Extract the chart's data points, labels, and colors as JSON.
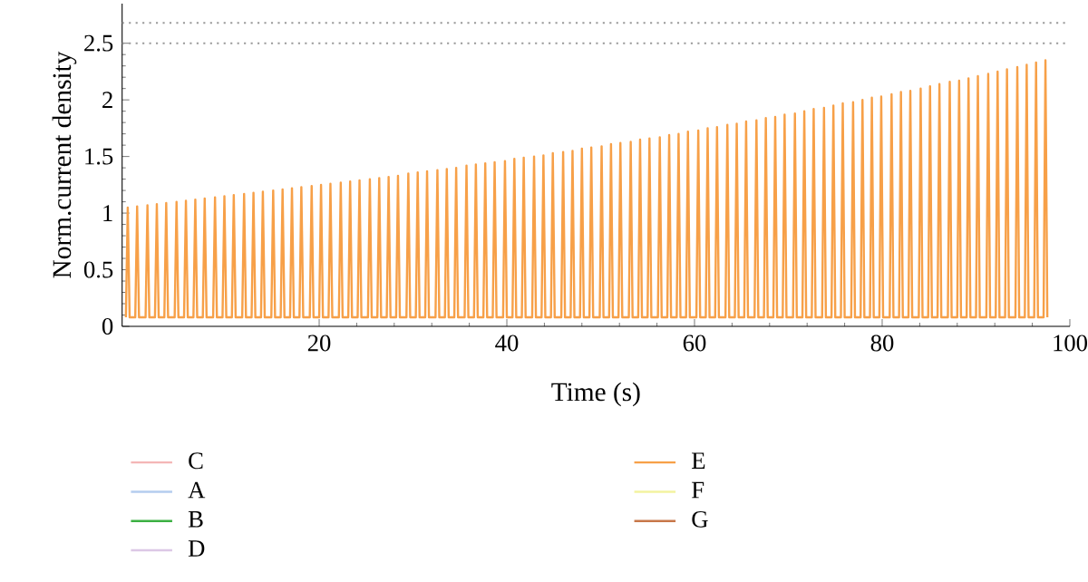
{
  "chart_data": {
    "type": "line",
    "xlabel": "Time (s)",
    "ylabel": "Norm.current density",
    "xlim": [
      -1,
      100
    ],
    "xticks": [
      20,
      40,
      60,
      80,
      100
    ],
    "ylim": [
      0,
      2.85
    ],
    "yticks": [
      0,
      0.5,
      1,
      1.5,
      2,
      2.5
    ],
    "grid": false,
    "legend": "bottom",
    "line_style": "solid",
    "marker": "none",
    "ref_lines": [
      {
        "axis": "y",
        "value": 2.5,
        "color": "#9a9a9a",
        "line_style": "dotted"
      },
      {
        "axis": "y",
        "value": 2.68,
        "color": "#9a9a9a",
        "line_style": "dotted"
      }
    ],
    "series": [
      {
        "name": "C",
        "color": "#f4b6b6"
      },
      {
        "name": "A",
        "color": "#b4cdef"
      },
      {
        "name": "B",
        "color": "#3cb043"
      },
      {
        "name": "D",
        "color": "#dcc8e6"
      },
      {
        "name": "E",
        "color": "#f7a048",
        "x": [
          -0.6,
          -0.4,
          -0.2,
          0.4,
          0.6,
          0.8,
          1.5,
          1.7,
          1.9,
          2.5,
          2.7,
          2.9,
          3.5,
          3.7,
          3.9,
          4.6,
          4.8,
          5.0,
          5.6,
          5.8,
          6.0,
          6.6,
          6.8,
          7.0,
          7.6,
          7.8,
          8.0,
          8.7,
          8.9,
          9.1,
          9.7,
          9.9,
          10.1,
          10.7,
          10.9,
          11.1,
          11.8,
          12.0,
          12.2,
          12.8,
          13.0,
          13.2,
          13.8,
          14.0,
          14.2,
          14.9,
          15.1,
          15.3,
          15.9,
          16.1,
          16.3,
          16.9,
          17.1,
          17.3,
          17.9,
          18.1,
          18.3,
          19.0,
          19.2,
          19.4,
          20.0,
          20.2,
          20.4,
          21.0,
          21.2,
          21.4,
          22.1,
          22.3,
          22.5,
          23.1,
          23.3,
          23.5,
          24.1,
          24.3,
          24.5,
          25.2,
          25.4,
          25.6,
          26.2,
          26.4,
          26.6,
          27.2,
          27.4,
          27.6,
          28.2,
          28.4,
          28.6,
          29.3,
          29.5,
          29.7,
          30.3,
          30.5,
          30.7,
          31.3,
          31.5,
          31.7,
          32.4,
          32.6,
          32.8,
          33.4,
          33.6,
          33.8,
          34.4,
          34.6,
          34.8,
          35.5,
          35.7,
          35.9,
          36.5,
          36.7,
          36.9,
          37.5,
          37.7,
          37.9,
          38.5,
          38.7,
          38.9,
          39.6,
          39.8,
          40.0,
          40.6,
          40.8,
          41.0,
          41.6,
          41.8,
          42.0,
          42.7,
          42.9,
          43.1,
          43.7,
          43.9,
          44.1,
          44.7,
          44.9,
          45.1,
          45.8,
          46.0,
          46.2,
          46.8,
          47.0,
          47.2,
          47.8,
          48.0,
          48.2,
          48.8,
          49.0,
          49.2,
          49.9,
          50.1,
          50.3,
          50.9,
          51.1,
          51.3,
          51.9,
          52.1,
          52.3,
          53.0,
          53.2,
          53.4,
          54.0,
          54.2,
          54.4,
          55.0,
          55.2,
          55.4,
          56.1,
          56.3,
          56.5,
          57.1,
          57.3,
          57.5,
          58.1,
          58.3,
          58.5,
          59.1,
          59.3,
          59.5,
          60.2,
          60.4,
          60.6,
          61.2,
          61.4,
          61.6,
          62.2,
          62.4,
          62.6,
          63.3,
          63.5,
          63.7,
          64.3,
          64.5,
          64.7,
          65.3,
          65.5,
          65.7,
          66.4,
          66.6,
          66.8,
          67.4,
          67.6,
          67.8,
          68.4,
          68.6,
          68.8,
          69.4,
          69.6,
          69.8,
          70.5,
          70.7,
          70.9,
          71.5,
          71.7,
          71.9,
          72.5,
          72.7,
          72.9,
          73.6,
          73.8,
          74.0,
          74.6,
          74.8,
          75.0,
          75.6,
          75.8,
          76.0,
          76.7,
          76.9,
          77.1,
          77.7,
          77.9,
          78.1,
          78.7,
          78.9,
          79.1,
          79.7,
          79.9,
          80.1,
          80.8,
          81.0,
          81.2,
          81.8,
          82.0,
          82.2,
          82.8,
          83.0,
          83.2,
          83.9,
          84.1,
          84.3,
          84.9,
          85.1,
          85.3,
          85.9,
          86.1,
          86.3,
          87.0,
          87.2,
          87.4,
          88.0,
          88.2,
          88.4,
          89.0,
          89.2,
          89.4,
          90.0,
          90.2,
          90.4,
          91.1,
          91.3,
          91.5,
          92.1,
          92.3,
          92.5,
          93.1,
          93.3,
          93.5,
          94.2,
          94.4,
          94.6,
          95.2,
          95.4,
          95.6,
          96.2,
          96.4,
          96.6,
          97.2,
          97.4,
          97.6
        ],
        "values": [
          0.08,
          1.05,
          0.08,
          0.08,
          1.06,
          0.08,
          0.08,
          1.07,
          0.08,
          0.08,
          1.08,
          0.08,
          0.08,
          1.09,
          0.08,
          0.08,
          1.1,
          0.08,
          0.08,
          1.11,
          0.08,
          0.08,
          1.12,
          0.08,
          0.08,
          1.13,
          0.08,
          0.08,
          1.14,
          0.08,
          0.08,
          1.15,
          0.08,
          0.08,
          1.16,
          0.08,
          0.08,
          1.17,
          0.08,
          0.08,
          1.18,
          0.08,
          0.08,
          1.19,
          0.08,
          0.08,
          1.2,
          0.08,
          0.08,
          1.21,
          0.08,
          0.08,
          1.22,
          0.08,
          0.08,
          1.23,
          0.08,
          0.08,
          1.24,
          0.08,
          0.08,
          1.25,
          0.08,
          0.08,
          1.26,
          0.08,
          0.08,
          1.27,
          0.08,
          0.08,
          1.28,
          0.08,
          0.08,
          1.29,
          0.08,
          0.08,
          1.3,
          0.08,
          0.08,
          1.31,
          0.08,
          0.08,
          1.32,
          0.08,
          0.08,
          1.33,
          0.08,
          0.08,
          1.35,
          0.08,
          0.08,
          1.36,
          0.08,
          0.08,
          1.37,
          0.08,
          0.08,
          1.38,
          0.08,
          0.08,
          1.39,
          0.08,
          0.08,
          1.4,
          0.08,
          0.08,
          1.42,
          0.08,
          0.08,
          1.43,
          0.08,
          0.08,
          1.44,
          0.08,
          0.08,
          1.45,
          0.08,
          0.08,
          1.46,
          0.08,
          0.08,
          1.48,
          0.08,
          0.08,
          1.49,
          0.08,
          0.08,
          1.5,
          0.08,
          0.08,
          1.51,
          0.08,
          0.08,
          1.53,
          0.08,
          0.08,
          1.54,
          0.08,
          0.08,
          1.55,
          0.08,
          0.08,
          1.57,
          0.08,
          0.08,
          1.58,
          0.08,
          0.08,
          1.59,
          0.08,
          0.08,
          1.61,
          0.08,
          0.08,
          1.62,
          0.08,
          0.08,
          1.63,
          0.08,
          0.08,
          1.65,
          0.08,
          0.08,
          1.66,
          0.08,
          0.08,
          1.67,
          0.08,
          0.08,
          1.69,
          0.08,
          0.08,
          1.7,
          0.08,
          0.08,
          1.72,
          0.08,
          0.08,
          1.73,
          0.08,
          0.08,
          1.75,
          0.08,
          0.08,
          1.76,
          0.08,
          0.08,
          1.78,
          0.08,
          0.08,
          1.79,
          0.08,
          0.08,
          1.81,
          0.08,
          0.08,
          1.82,
          0.08,
          0.08,
          1.84,
          0.08,
          0.08,
          1.85,
          0.08,
          0.08,
          1.87,
          0.08,
          0.08,
          1.88,
          0.08,
          0.08,
          1.9,
          0.08,
          0.08,
          1.92,
          0.08,
          0.08,
          1.93,
          0.08,
          0.08,
          1.95,
          0.08,
          0.08,
          1.97,
          0.08,
          0.08,
          1.98,
          0.08,
          0.08,
          2.0,
          0.08,
          0.08,
          2.02,
          0.08,
          0.08,
          2.03,
          0.08,
          0.08,
          2.05,
          0.08,
          0.08,
          2.07,
          0.08,
          0.08,
          2.08,
          0.08,
          0.08,
          2.1,
          0.08,
          0.08,
          2.12,
          0.08,
          0.08,
          2.14,
          0.08,
          0.08,
          2.16,
          0.08,
          0.08,
          2.17,
          0.08,
          0.08,
          2.19,
          0.08,
          0.08,
          2.21,
          0.08,
          0.08,
          2.23,
          0.08,
          0.08,
          2.25,
          0.08,
          0.08,
          2.27,
          0.08,
          0.08,
          2.29,
          0.08,
          0.08,
          2.31,
          0.08,
          0.08,
          2.33,
          0.08,
          0.08,
          2.35,
          0.08
        ]
      },
      {
        "name": "F",
        "color": "#f3f3a0"
      },
      {
        "name": "G",
        "color": "#c8784a"
      }
    ]
  }
}
